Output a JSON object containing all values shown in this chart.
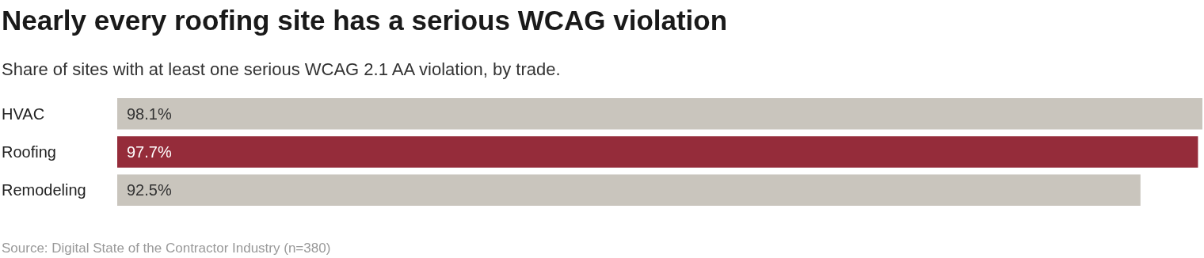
{
  "chart_data": {
    "type": "bar",
    "orientation": "horizontal",
    "title": "Nearly every roofing site has a serious WCAG violation",
    "subtitle": "Share of sites with at least one serious WCAG 2.1 AA violation, by trade.",
    "categories": [
      "HVAC",
      "Roofing",
      "Remodeling"
    ],
    "values": [
      98.1,
      97.7,
      92.5
    ],
    "colors": [
      "#c9c5bd",
      "#952c3a",
      "#c9c5bd"
    ],
    "value_labels": [
      "98.1%",
      "97.7%",
      "92.5%"
    ],
    "xlim": [
      0,
      98.1
    ],
    "annotations": [
      "Source: Digital State of the Contractor Industry (n=380)"
    ]
  }
}
